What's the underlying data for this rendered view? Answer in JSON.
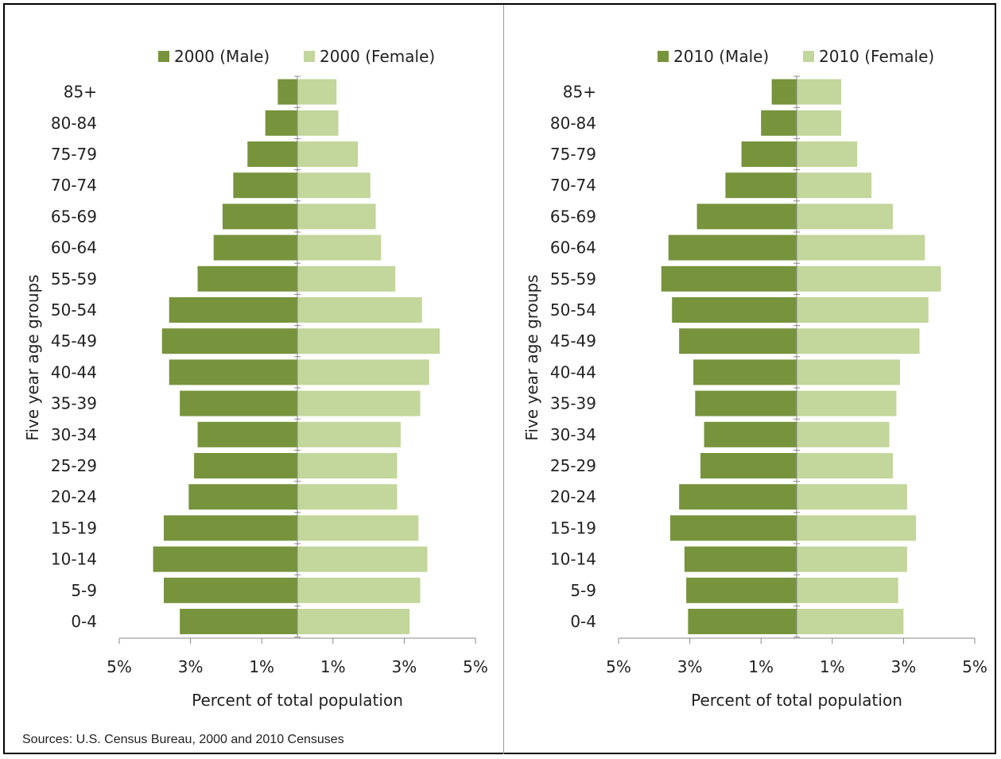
{
  "source_note": "Sources: U.S. Census Bureau, 2000 and 2010 Censuses",
  "colors": {
    "male": "#77933C",
    "female": "#C3D69B",
    "axis": "#888888",
    "border": "#000000"
  },
  "chart_data": [
    {
      "type": "bar",
      "orientation": "horizontal-diverging",
      "ylabel": "Five year age groups",
      "xlabel": "Percent of total population",
      "categories": [
        "85+",
        "80-84",
        "75-79",
        "70-74",
        "65-69",
        "60-64",
        "55-59",
        "50-54",
        "45-49",
        "40-44",
        "35-39",
        "30-34",
        "25-29",
        "20-24",
        "15-19",
        "10-14",
        "5-9",
        "0-4"
      ],
      "xlim": [
        -5,
        5
      ],
      "xticks": [
        "5%",
        "3%",
        "1%",
        "1%",
        "3%",
        "5%"
      ],
      "legend_position": "top",
      "grid": false,
      "series": [
        {
          "name": "2000 (Male)",
          "color": "#77933C",
          "values": [
            0.55,
            0.9,
            1.4,
            1.8,
            2.1,
            2.35,
            2.8,
            3.6,
            3.8,
            3.6,
            3.3,
            2.8,
            2.9,
            3.05,
            3.75,
            4.05,
            3.75,
            3.3
          ]
        },
        {
          "name": "2000 (Female)",
          "color": "#C3D69B",
          "values": [
            1.1,
            1.15,
            1.7,
            2.05,
            2.2,
            2.35,
            2.75,
            3.5,
            4.0,
            3.7,
            3.45,
            2.9,
            2.8,
            2.8,
            3.4,
            3.65,
            3.45,
            3.15
          ]
        }
      ]
    },
    {
      "type": "bar",
      "orientation": "horizontal-diverging",
      "ylabel": "Five year age groups",
      "xlabel": "Percent of total population",
      "categories": [
        "85+",
        "80-84",
        "75-79",
        "70-74",
        "65-69",
        "60-64",
        "55-59",
        "50-54",
        "45-49",
        "40-44",
        "35-39",
        "30-34",
        "25-29",
        "20-24",
        "15-19",
        "10-14",
        "5-9",
        "0-4"
      ],
      "xlim": [
        -5,
        5
      ],
      "xticks": [
        "5%",
        "3%",
        "1%",
        "1%",
        "3%",
        "5%"
      ],
      "legend_position": "top",
      "grid": false,
      "series": [
        {
          "name": "2010 (Male)",
          "color": "#77933C",
          "values": [
            0.7,
            1.0,
            1.55,
            2.0,
            2.8,
            3.6,
            3.8,
            3.5,
            3.3,
            2.9,
            2.85,
            2.6,
            2.7,
            3.3,
            3.55,
            3.15,
            3.1,
            3.05
          ]
        },
        {
          "name": "2010 (Female)",
          "color": "#C3D69B",
          "values": [
            1.25,
            1.25,
            1.7,
            2.1,
            2.7,
            3.6,
            4.05,
            3.7,
            3.45,
            2.9,
            2.8,
            2.6,
            2.7,
            3.1,
            3.35,
            3.1,
            2.85,
            3.0
          ]
        }
      ]
    }
  ]
}
